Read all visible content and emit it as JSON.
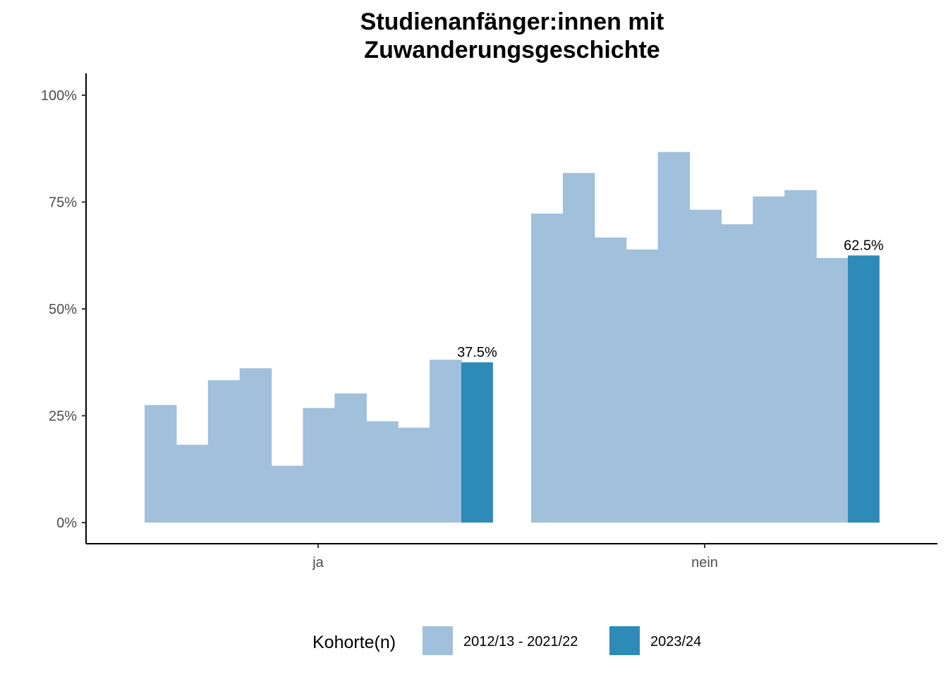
{
  "chart_data": {
    "type": "bar",
    "title_lines": [
      "Studienanfänger:innen mit",
      "Zuwanderungsgeschichte"
    ],
    "xlabel": "",
    "ylabel": "",
    "ylim": [
      0,
      1.05
    ],
    "y_ticks": [
      0,
      0.25,
      0.5,
      0.75,
      1.0
    ],
    "y_tick_labels": [
      "0%",
      "25%",
      "50%",
      "75%",
      "100%"
    ],
    "grid": false,
    "legend_position": "bottom",
    "legend_title": "Kohorte(n)",
    "legend_items": [
      {
        "label": "2012/13 - 2021/22",
        "color": "#a0c0dc"
      },
      {
        "label": "2023/24",
        "color": "#2e8bb7"
      }
    ],
    "categories": [
      "ja",
      "nein"
    ],
    "groups": [
      {
        "category": "ja",
        "history_values": [
          0.275,
          0.182,
          0.333,
          0.361,
          0.133,
          0.268,
          0.302,
          0.237,
          0.222,
          0.381
        ],
        "current_value": 0.375,
        "current_label": "37.5%"
      },
      {
        "category": "nein",
        "history_values": [
          0.723,
          0.818,
          0.667,
          0.639,
          0.867,
          0.732,
          0.698,
          0.763,
          0.778,
          0.619
        ],
        "current_value": 0.625,
        "current_label": "62.5%"
      }
    ],
    "colors": {
      "history": "#a0c0dc",
      "current": "#2e8bb7"
    }
  }
}
